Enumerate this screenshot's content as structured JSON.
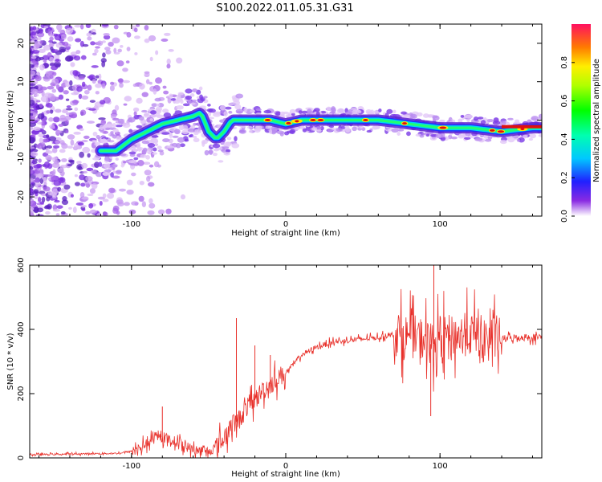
{
  "title": "S100.2022.011.05.31.G31",
  "colors": {
    "snr_line": "#e8302a",
    "scatter_low": "#d9b8f5",
    "scatter_mid": "#7a2ae0",
    "track_core": "#e01010"
  },
  "chart_data": [
    {
      "type": "heatmap",
      "title": "S100.2022.011.05.31.G31",
      "xlabel": "Height of straight line (km)",
      "ylabel": "Frequency (Hz)",
      "xlim": [
        -166,
        166
      ],
      "ylim": [
        -25,
        25
      ],
      "xticks": [
        -100,
        0,
        100
      ],
      "yticks": [
        -20,
        -10,
        0,
        10,
        20
      ],
      "xtick_labels": [
        "-100",
        "0",
        "100"
      ],
      "ytick_labels": [
        "-20",
        "-10",
        "0",
        "10",
        "20"
      ],
      "colorbar": {
        "label": "Normalized spectral amplitude",
        "range": [
          0,
          1
        ],
        "ticks": [
          0.0,
          0.2,
          0.4,
          0.6,
          0.8
        ],
        "tick_labels": [
          "0.0",
          "0.2",
          "0.4",
          "0.6",
          "0.8"
        ]
      },
      "track": {
        "x": [
          -120,
          -110,
          -100,
          -90,
          -80,
          -70,
          -60,
          -55,
          -50,
          -45,
          -40,
          -35,
          -30,
          -20,
          -10,
          0,
          10,
          20,
          40,
          60,
          80,
          100,
          120,
          140,
          160,
          166
        ],
        "y": [
          -8,
          -8,
          -5,
          -3,
          -1,
          0,
          1,
          2,
          -3,
          -5,
          -3,
          0,
          0,
          0,
          0,
          -1,
          0,
          0,
          0,
          0,
          -1,
          -2,
          -2,
          -3,
          -2,
          -2
        ]
      },
      "noise_region": {
        "x": [
          -166,
          -100
        ],
        "y": [
          -25,
          25
        ]
      }
    },
    {
      "type": "line",
      "xlabel": "Height of straight line (km)",
      "ylabel": "SNR (10 * v/v)",
      "xlim": [
        -166,
        166
      ],
      "ylim": [
        0,
        600
      ],
      "xticks": [
        -100,
        0,
        100
      ],
      "yticks": [
        0,
        200,
        400,
        600
      ],
      "xtick_labels": [
        "-100",
        "0",
        "100"
      ],
      "ytick_labels": [
        "0",
        "200",
        "400",
        "600"
      ],
      "series": [
        {
          "name": "SNR",
          "x": [
            -166,
            -140,
            -110,
            -100,
            -95,
            -90,
            -85,
            -80,
            -75,
            -70,
            -60,
            -50,
            -45,
            -40,
            -35,
            -30,
            -25,
            -20,
            -15,
            -10,
            -5,
            0,
            5,
            10,
            20,
            30,
            40,
            50,
            60,
            70,
            75,
            80,
            90,
            95,
            100,
            110,
            120,
            130,
            140,
            150,
            166
          ],
          "y": [
            10,
            12,
            14,
            20,
            30,
            45,
            60,
            65,
            55,
            50,
            25,
            20,
            35,
            60,
            100,
            120,
            160,
            180,
            210,
            230,
            250,
            265,
            290,
            320,
            345,
            360,
            365,
            370,
            375,
            385,
            380,
            380,
            370,
            350,
            375,
            380,
            385,
            375,
            370,
            375,
            375
          ]
        }
      ],
      "spikes": [
        {
          "x": -80,
          "y": 160
        },
        {
          "x": -32,
          "y": 435
        },
        {
          "x": -20,
          "y": 350
        },
        {
          "x": -10,
          "y": 320
        },
        {
          "x": 96,
          "y": 600
        },
        {
          "x": 94,
          "y": 130
        }
      ]
    }
  ]
}
